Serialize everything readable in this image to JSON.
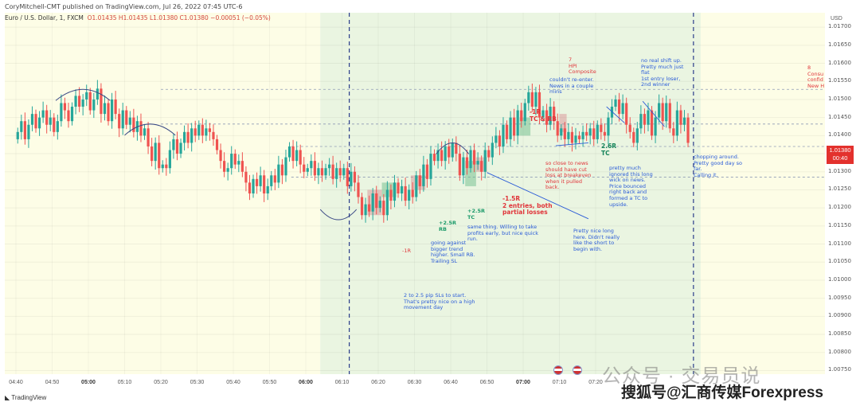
{
  "header": {
    "published": "CoryMitchell-CMT published on TradingView.com, Jul 26, 2022 07:45 UTC-6",
    "symbol": "Euro / U.S. Dollar, 1, FXCM",
    "ohlc": "O1.01435 H1.01435 L1.01380 C1.01380 −0.00051 (−0.05%)"
  },
  "colors": {
    "up": "#26a69a",
    "down": "#ef5350",
    "yellow_zone": "#fdfde6",
    "green_zone": "#eaf5e1",
    "accent": "#2a5bd7"
  },
  "price_badge": {
    "price": "1.01380",
    "time": "00:40"
  },
  "footer": {
    "logo": "TradingView",
    "watermark_cn": "公众号 · 交易员说",
    "watermark_2": "搜狐号@汇商传媒Forexpress"
  },
  "chart_data": {
    "type": "candlestick",
    "x_unit": "time (1-minute candles)",
    "x_ticks": [
      "04:40",
      "04:50",
      "05:00",
      "05:10",
      "05:20",
      "05:30",
      "05:40",
      "05:50",
      "06:00",
      "06:10",
      "06:20",
      "06:30",
      "06:40",
      "06:50",
      "07:00",
      "07:10",
      "07:20"
    ],
    "x_bold": [
      "05:00",
      "06:00",
      "07:00"
    ],
    "y_axis_label": "USD",
    "y_ticks": [
      "1.01700",
      "1.01650",
      "1.01600",
      "1.01550",
      "1.01500",
      "1.01450",
      "1.01400",
      "1.01350",
      "1.01300",
      "1.01250",
      "1.01200",
      "1.01150",
      "1.01100",
      "1.01050",
      "1.01000",
      "1.00950",
      "1.00900",
      "1.00850",
      "1.00800",
      "1.00750"
    ],
    "ylim": [
      1.0074,
      1.0174
    ],
    "zones": [
      {
        "name": "pre-session",
        "from_min": 0,
        "to_min": 84,
        "color": "yellow"
      },
      {
        "name": "session",
        "from_min": 84,
        "to_min": 189,
        "color": "green"
      }
    ],
    "vlines_min": [
      92,
      187
    ],
    "hlines": [
      1.01528,
      1.01432,
      1.0137,
      1.01285
    ],
    "closes": [
      1.0141,
      1.0144,
      1.0139,
      1.0143,
      1.0146,
      1.0142,
      1.0145,
      1.0147,
      1.0143,
      1.0145,
      1.0141,
      1.0144,
      1.0149,
      1.0147,
      1.0144,
      1.0148,
      1.0151,
      1.0148,
      1.015,
      1.0152,
      1.0147,
      1.015,
      1.0153,
      1.0146,
      1.0149,
      1.0144,
      1.015,
      1.0146,
      1.0142,
      1.0147,
      1.0143,
      1.0145,
      1.0141,
      1.0144,
      1.014,
      1.0142,
      1.0137,
      1.0133,
      1.0138,
      1.0131,
      1.0132,
      1.0131,
      1.0136,
      1.0139,
      1.0135,
      1.0138,
      1.0141,
      1.0138,
      1.0142,
      1.014,
      1.0143,
      1.014,
      1.0142,
      1.0141,
      1.0139,
      1.0136,
      1.0133,
      1.013,
      1.0131,
      1.0135,
      1.0132,
      1.0133,
      1.013,
      1.0127,
      1.0124,
      1.0128,
      1.0126,
      1.0129,
      1.0124,
      1.0126,
      1.0129,
      1.0127,
      1.0132,
      1.0129,
      1.0134,
      1.0137,
      1.0133,
      1.0136,
      1.0132,
      1.013,
      1.0131,
      1.0133,
      1.0129,
      1.0131,
      1.0129,
      1.0131,
      1.0132,
      1.0128,
      1.0131,
      1.0129,
      1.0131,
      1.0126,
      1.013,
      1.0127,
      1.0123,
      1.0118,
      1.0121,
      1.0119,
      1.0124,
      1.012,
      1.0122,
      1.0118,
      1.0125,
      1.0122,
      1.0127,
      1.0124,
      1.0126,
      1.0122,
      1.0125,
      1.0123,
      1.0129,
      1.0126,
      1.0132,
      1.0128,
      1.0135,
      1.0133,
      1.0136,
      1.0133,
      1.0137,
      1.0134,
      1.0138,
      1.0135,
      1.0129,
      1.0134,
      1.0131,
      1.0136,
      1.0132,
      1.0133,
      1.013,
      1.0136,
      1.0134,
      1.0138,
      1.014,
      1.0137,
      1.0143,
      1.0139,
      1.0145,
      1.014,
      1.0147,
      1.0144,
      1.0149,
      1.0152,
      1.0148,
      1.0152,
      1.0145,
      1.0147,
      1.0143,
      1.0148,
      1.0144,
      1.014,
      1.0142,
      1.0139,
      1.0141,
      1.0138,
      1.014,
      1.0139,
      1.0141,
      1.014,
      1.0142,
      1.0139,
      1.0143,
      1.0141,
      1.014,
      1.0145,
      1.0148,
      1.015,
      1.0146,
      1.0149,
      1.0143,
      1.0141,
      1.0138,
      1.0142,
      1.0146,
      1.0143,
      1.0147,
      1.014,
      1.0145,
      1.0149,
      1.0144,
      1.0149,
      1.0142,
      1.014,
      1.0147,
      1.0143,
      1.0145,
      1.0138
    ],
    "arcs": [
      {
        "from_min": 11,
        "to_min": 26,
        "peak": 1.01528
      },
      {
        "from_min": 30,
        "to_min": 44,
        "peak": 1.01432
      },
      {
        "from_min": 116,
        "to_min": 125,
        "peak": 1.0138,
        "dir": "up"
      },
      {
        "from_min": 84,
        "to_min": 94,
        "trough": 1.01165,
        "dir": "down"
      }
    ],
    "boxes": [
      {
        "from_min": 97,
        "to_min": 101,
        "low": 1.0118,
        "high": 1.0125,
        "color": "red"
      },
      {
        "from_min": 101,
        "to_min": 105,
        "low": 1.0123,
        "high": 1.0127,
        "color": "green"
      },
      {
        "from_min": 109,
        "to_min": 113,
        "low": 1.0125,
        "high": 1.0129,
        "color": "red"
      },
      {
        "from_min": 124,
        "to_min": 127,
        "low": 1.0126,
        "high": 1.0133,
        "color": "green"
      },
      {
        "from_min": 127,
        "to_min": 130,
        "low": 1.013,
        "high": 1.0134,
        "color": "red"
      },
      {
        "from_min": 139,
        "to_min": 142,
        "low": 1.014,
        "high": 1.0145,
        "color": "green"
      },
      {
        "from_min": 150,
        "to_min": 152,
        "low": 1.0141,
        "high": 1.0146,
        "color": "red"
      }
    ],
    "annotations": [
      {
        "text": "-1R",
        "style": "red"
      },
      {
        "text": "going against\nbigger trend\nhigher. Small RB.\nTrailing SL",
        "style": "blue"
      },
      {
        "text": "+2.5R\nRB",
        "style": "green"
      },
      {
        "text": "+2.5R\nTC",
        "style": "green"
      },
      {
        "text": "same thing. Willing to take\nprofits early, but nice quick\nrun.",
        "style": "blue"
      },
      {
        "text": "2 to 2.5 pip SLs to start.\nThat's pretty nice on a high\nmovement day",
        "style": "blue"
      },
      {
        "text": "-1.5R\n2 entries, both\npartial losses",
        "style": "redb"
      },
      {
        "text": "so close to news\nshould have cut\nloss at breakeven\nwhen it pulled\nback.",
        "style": "red"
      },
      {
        "text": "Pretty nice long\nhere. Didn't really\nlike the short to\nbegin with.",
        "style": "blue"
      },
      {
        "text": "-1R\nTC & RB",
        "style": "redb"
      },
      {
        "text": "couldn't re-enter.\nNews in a couple\nmins",
        "style": "blue"
      },
      {
        "text": "7\nHPI\nComposite",
        "style": "red"
      },
      {
        "text": "pretty much\nignored this long\nwick on news.\nPrice bounced\nright back and\nformed a TC to\nupside.",
        "style": "blue"
      },
      {
        "text": "2.6R\nTC",
        "style": "grnb"
      },
      {
        "text": "no real shift up.\nPretty much just\nflat\n1st entry loser,\n2nd winner",
        "style": "blue"
      },
      {
        "text": "chopping around.\nPretty good day so\nfar.\nCalling it.",
        "style": "blue"
      },
      {
        "text": "8\nConsu\nconfid\nNew H",
        "style": "red"
      }
    ]
  }
}
